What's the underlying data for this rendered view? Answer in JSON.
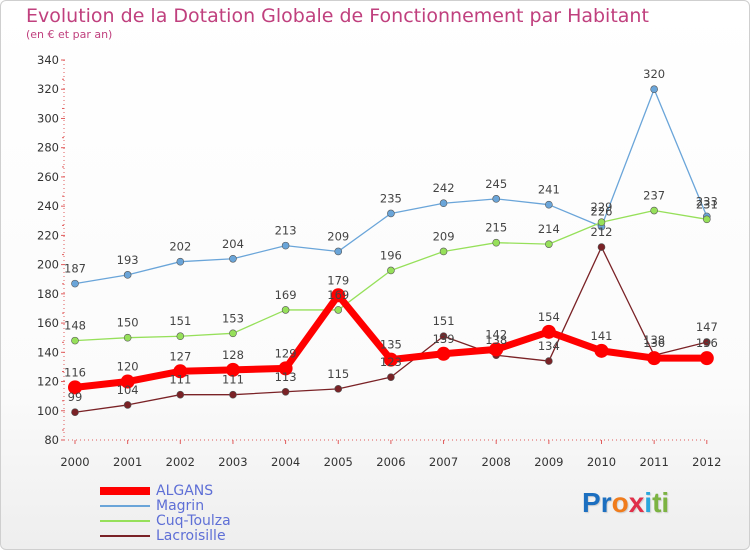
{
  "title": "Evolution de la Dotation Globale de Fonctionnement par Habitant",
  "subtitle": "(en € et par an)",
  "logo_text": "Proxiti",
  "chart_data": {
    "type": "line",
    "title": "Evolution de la Dotation Globale de Fonctionnement par Habitant",
    "subtitle": "(en € et par an)",
    "xlabel": "",
    "ylabel": "",
    "ylim": [
      80,
      340
    ],
    "ytick_step": 20,
    "grid": false,
    "legend_position": "bottom-left",
    "categories": [
      "2000",
      "2001",
      "2002",
      "2003",
      "2004",
      "2005",
      "2006",
      "2007",
      "2008",
      "2009",
      "2010",
      "2011",
      "2012"
    ],
    "series": [
      {
        "name": "ALGANS",
        "color": "#ff0000",
        "values": [
          116,
          120,
          127,
          128,
          129,
          179,
          135,
          139,
          142,
          154,
          141,
          136,
          136
        ]
      },
      {
        "name": "Magrin",
        "color": "#6aa5d9",
        "values": [
          187,
          193,
          202,
          204,
          213,
          209,
          235,
          242,
          245,
          241,
          226,
          320,
          233
        ]
      },
      {
        "name": "Cuq-Toulza",
        "color": "#96e05a",
        "values": [
          148,
          150,
          151,
          153,
          169,
          169,
          196,
          209,
          215,
          214,
          229,
          237,
          231
        ]
      },
      {
        "name": "Lacroisille",
        "color": "#7a2226",
        "values": [
          99,
          104,
          111,
          111,
          113,
          115,
          123,
          151,
          138,
          134,
          212,
          138,
          147
        ]
      }
    ],
    "value_labels": [
      [
        "116",
        "120",
        "127",
        "128",
        "129",
        "179",
        "135",
        "139",
        "142",
        "154",
        "141",
        "136",
        "136"
      ],
      [
        "187",
        "193",
        "202",
        "204",
        "213",
        "209",
        "235",
        "242",
        "245",
        "241",
        "226",
        "320",
        "233"
      ],
      [
        "148",
        "150",
        "151",
        "153",
        "169",
        "169",
        "196",
        "209",
        "215",
        "214",
        "229",
        "237",
        "231"
      ],
      [
        "99",
        "104",
        "111",
        "111",
        "113",
        "115",
        "123",
        "151",
        "138",
        "134",
        "212",
        "138",
        "147"
      ]
    ]
  }
}
